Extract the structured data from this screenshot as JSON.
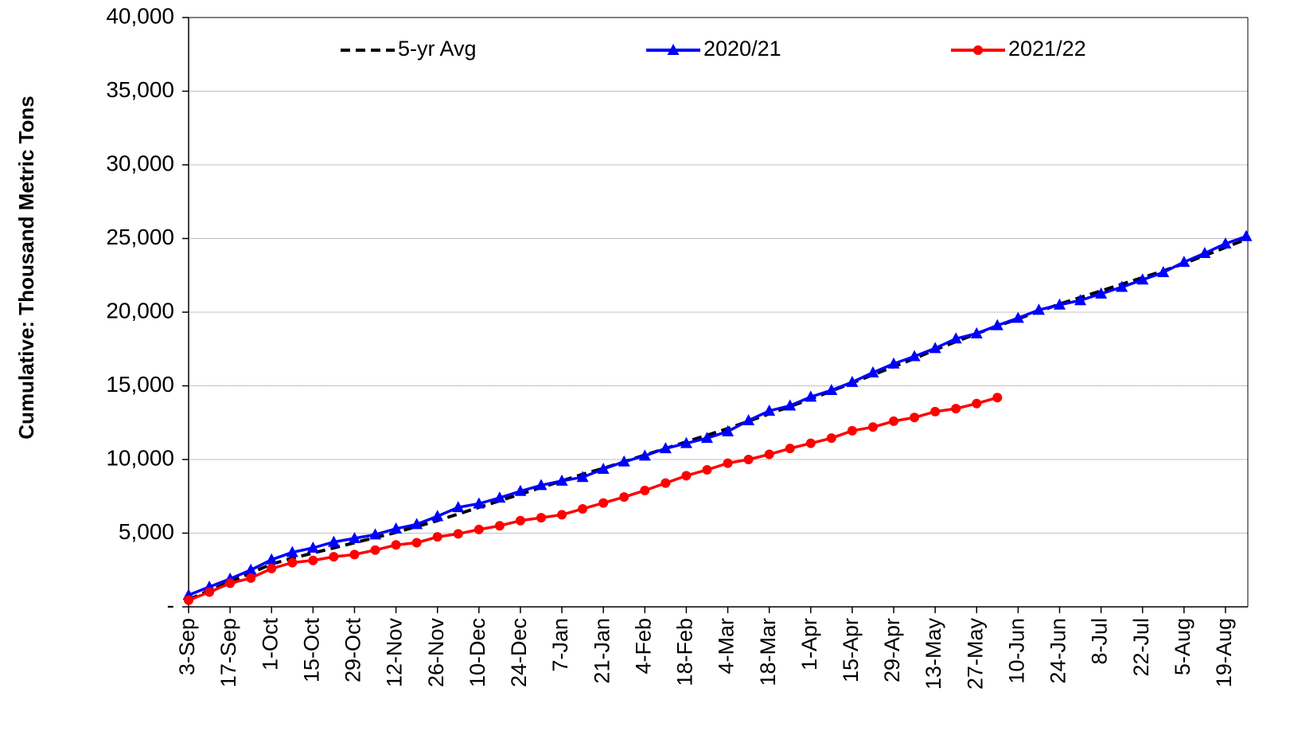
{
  "chart_data": {
    "type": "line",
    "y_label": "Cumulative:  Thousand Metric Tons",
    "categories": [
      "3-Sep",
      null,
      "17-Sep",
      null,
      "1-Oct",
      null,
      "15-Oct",
      null,
      "29-Oct",
      null,
      "12-Nov",
      null,
      "26-Nov",
      null,
      "10-Dec",
      null,
      "24-Dec",
      null,
      "7-Jan",
      null,
      "21-Jan",
      null,
      "4-Feb",
      null,
      "18-Feb",
      null,
      "4-Mar",
      null,
      "18-Mar",
      null,
      "1-Apr",
      null,
      "15-Apr",
      null,
      "29-Apr",
      null,
      "13-May",
      null,
      "27-May",
      null,
      "10-Jun",
      null,
      "24-Jun",
      null,
      "8-Jul",
      null,
      "22-Jul",
      null,
      "5-Aug",
      null,
      "19-Aug",
      null
    ],
    "ylim": [
      0,
      40000
    ],
    "yticks": [
      {
        "value": 0,
        "label": "-"
      },
      {
        "value": 5000,
        "label": "5,000"
      },
      {
        "value": 10000,
        "label": "10,000"
      },
      {
        "value": 15000,
        "label": "15,000"
      },
      {
        "value": 20000,
        "label": "20,000"
      },
      {
        "value": 25000,
        "label": "25,000"
      },
      {
        "value": 30000,
        "label": "30,000"
      },
      {
        "value": 35000,
        "label": "35,000"
      },
      {
        "value": 40000,
        "label": "40,000"
      }
    ],
    "grid": true,
    "legend": "top",
    "series": [
      {
        "name": "5-yr Avg",
        "color": "#000000",
        "style": "dashed",
        "marker": null,
        "values": [
          500,
          1100,
          1700,
          2300,
          2900,
          3300,
          3650,
          4000,
          4350,
          4700,
          5050,
          5450,
          5850,
          6300,
          6750,
          7200,
          7650,
          8100,
          8550,
          9000,
          9400,
          9850,
          10300,
          10750,
          11200,
          11650,
          12100,
          12600,
          13100,
          13600,
          14100,
          14650,
          15200,
          15750,
          16300,
          16850,
          17450,
          18000,
          18550,
          19050,
          19550,
          20050,
          20550,
          21000,
          21450,
          21900,
          22350,
          22800,
          23300,
          23850,
          24400,
          24950
        ]
      },
      {
        "name": "2020/21",
        "color": "#0000ff",
        "style": "solid",
        "marker": "triangle",
        "values": [
          800,
          1350,
          1900,
          2500,
          3200,
          3700,
          4000,
          4400,
          4650,
          4900,
          5300,
          5600,
          6150,
          6750,
          7000,
          7400,
          7850,
          8250,
          8550,
          8800,
          9350,
          9850,
          10250,
          10750,
          11100,
          11450,
          11900,
          12650,
          13300,
          13650,
          14250,
          14700,
          15250,
          15900,
          16500,
          17000,
          17550,
          18200,
          18550,
          19100,
          19600,
          20150,
          20500,
          20800,
          21250,
          21700,
          22200,
          22700,
          23400,
          24000,
          24650,
          25150
        ]
      },
      {
        "name": "2021/22",
        "color": "#ff0000",
        "style": "solid",
        "marker": "circle",
        "values": [
          450,
          1000,
          1600,
          1950,
          2600,
          3000,
          3150,
          3400,
          3550,
          3850,
          4200,
          4350,
          4750,
          4950,
          5250,
          5500,
          5850,
          6050,
          6250,
          6650,
          7050,
          7450,
          7900,
          8400,
          8900,
          9300,
          9750,
          10000,
          10350,
          10750,
          11100,
          11450,
          11950,
          12200,
          12600,
          12850,
          13250,
          13450,
          13800,
          14200,
          null,
          null,
          null,
          null,
          null,
          null,
          null,
          null,
          null,
          null,
          null,
          null
        ]
      }
    ]
  }
}
